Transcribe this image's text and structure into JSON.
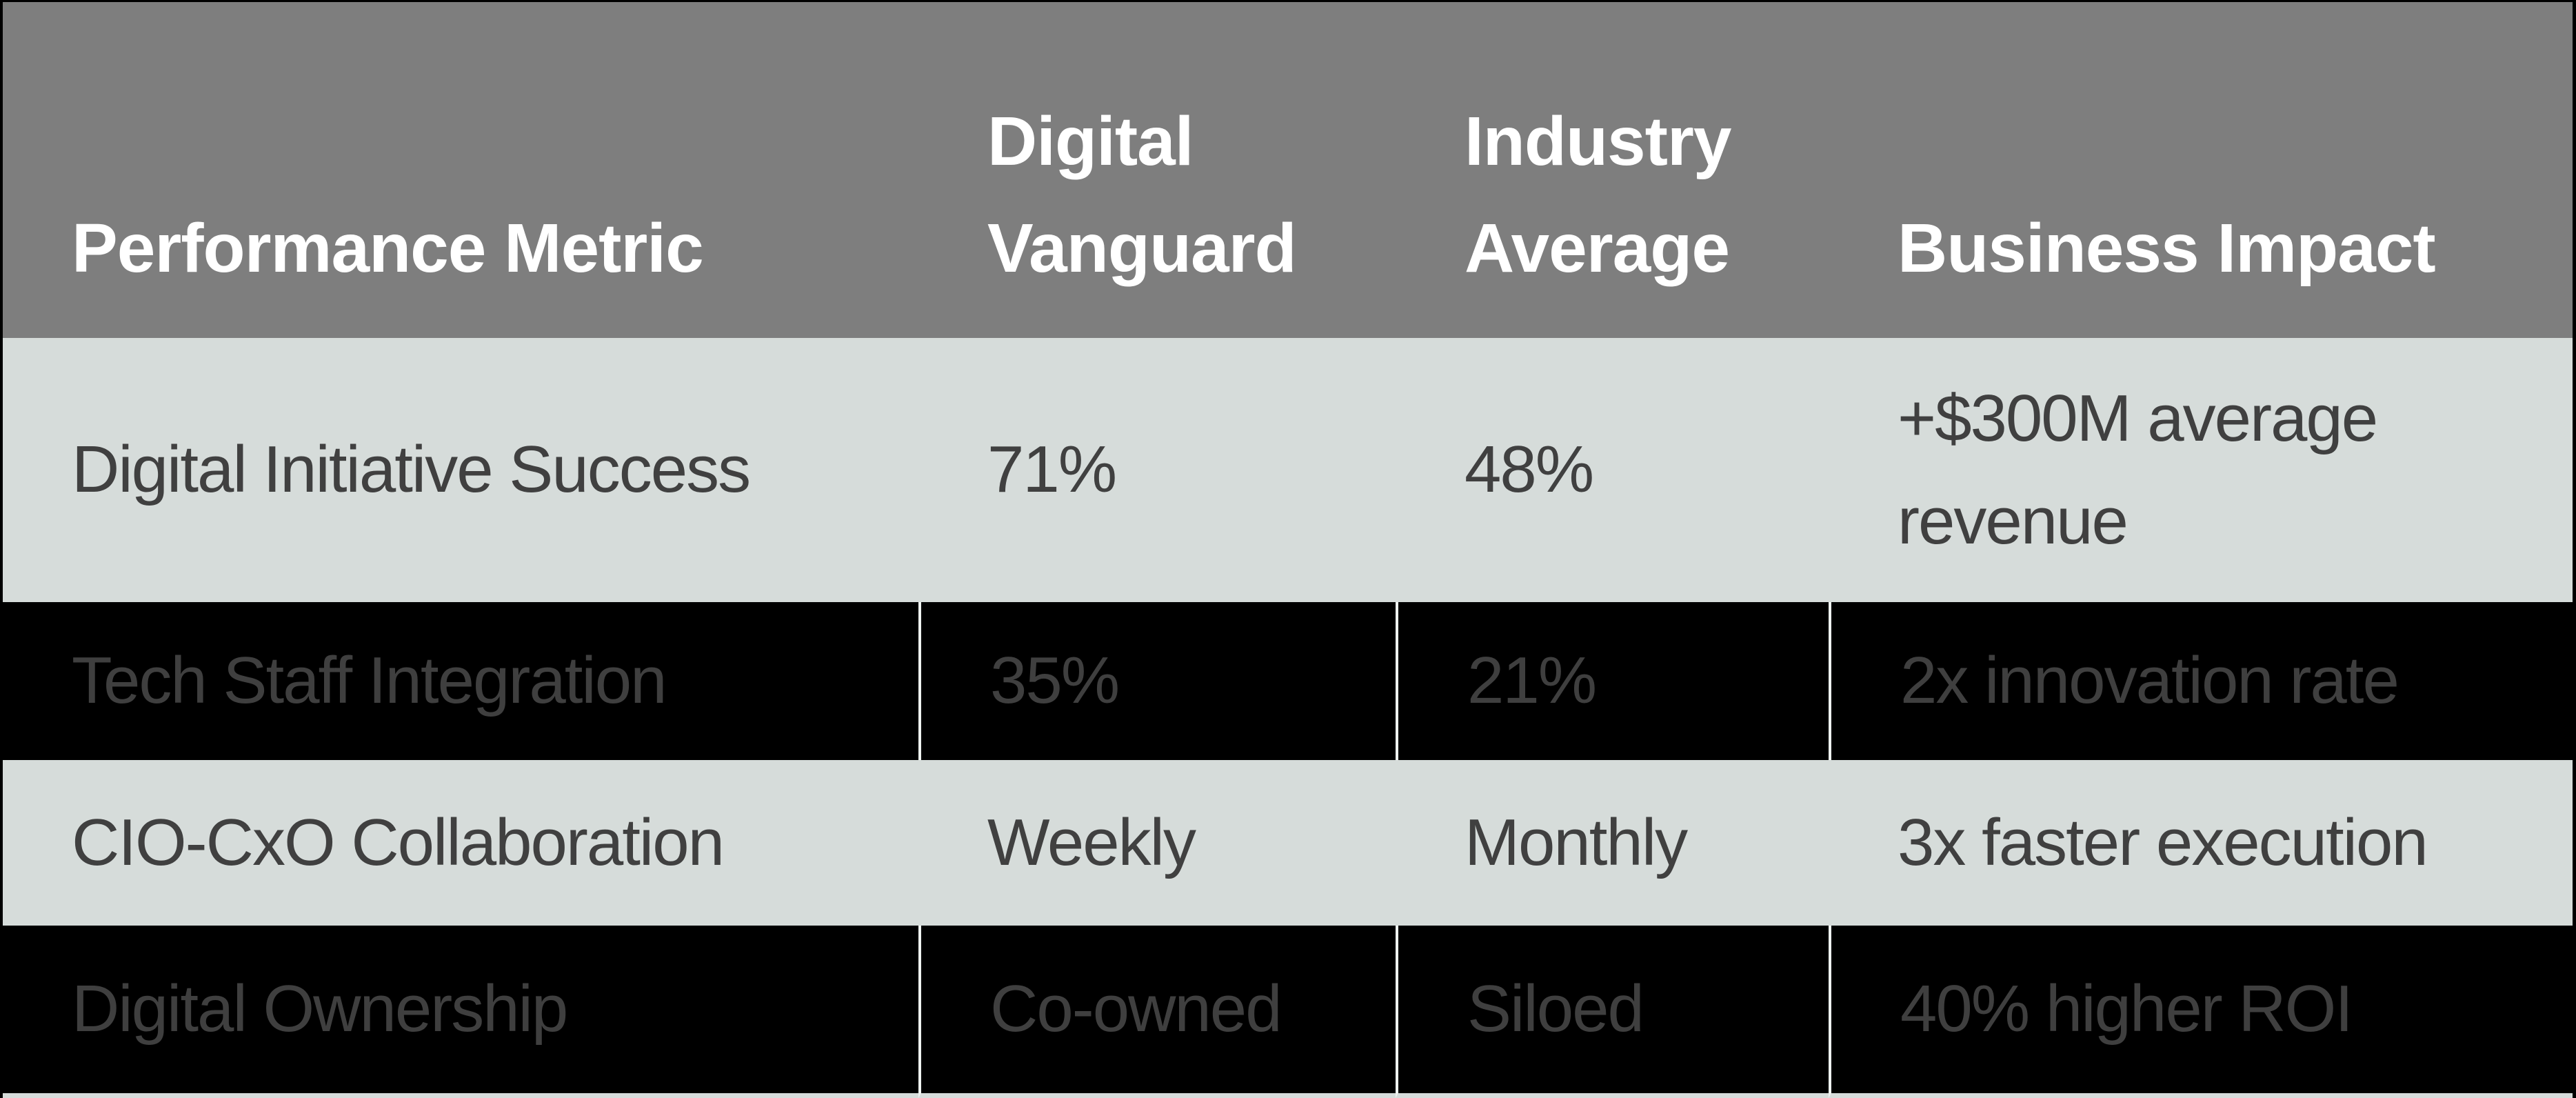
{
  "chart_data": {
    "type": "table",
    "columns": [
      "Performance Metric",
      "Digital Vanguard",
      "Industry Average",
      "Business Impact"
    ],
    "rows": [
      [
        "Digital Initiative Success",
        "71%",
        "48%",
        "+$300M average revenue"
      ],
      [
        "Tech Staff Integration",
        "35%",
        "21%",
        "2x innovation rate"
      ],
      [
        "CIO-CxO Collaboration",
        "Weekly",
        "Monthly",
        "3x faster execution"
      ],
      [
        "Digital Ownership",
        "Co-owned",
        "Siloed",
        "40% higher ROI"
      ]
    ],
    "row_styles": [
      "light",
      "dark",
      "light",
      "dark"
    ],
    "layout_hints": {
      "header_position": "top",
      "grid": "white column dividers visible on dark rows only"
    }
  },
  "colors": {
    "header_background": "#7e7e7e",
    "header_text": "#ffffff",
    "light_row_background": "#d6dcda",
    "dark_row_background": "#000000",
    "light_row_text": "#404040",
    "dark_row_text": "#3f3f3f",
    "divider": "#eef2f0",
    "outer_border": "#000000"
  }
}
